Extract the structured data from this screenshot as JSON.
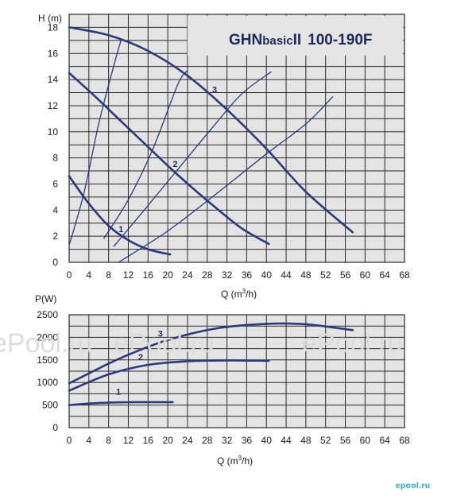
{
  "colors": {
    "curve": "#2b3a7a",
    "grid": "#2a2a2a",
    "plot_bg": "#e4e4e4",
    "watermark": "#dcdcdc",
    "logo": "#1aa7c9"
  },
  "chart_data": [
    {
      "type": "line",
      "title_parts": [
        "GHN",
        "basic",
        "II",
        "100-190F"
      ],
      "ylabel": "H (m)",
      "xlabel_q": "Q (m",
      "xlabel_sup": "3",
      "xlabel_tail": "/h)",
      "xlim": [
        0,
        68
      ],
      "ylim": [
        0,
        19
      ],
      "xticks": [
        0,
        4,
        8,
        12,
        16,
        20,
        24,
        28,
        32,
        36,
        40,
        44,
        48,
        52,
        56,
        60,
        64,
        68
      ],
      "yticks": [
        0,
        2,
        4,
        6,
        8,
        10,
        12,
        14,
        16,
        18
      ],
      "series": [
        {
          "name": "1",
          "x": [
            0,
            4,
            8,
            12,
            16,
            20.5
          ],
          "y": [
            6.6,
            4.5,
            2.8,
            1.7,
            1.0,
            0.6
          ]
        },
        {
          "name": "2",
          "x": [
            0,
            5,
            10,
            15,
            20,
            25,
            30,
            35,
            40.5
          ],
          "y": [
            14.5,
            12.8,
            11.0,
            9.2,
            7.4,
            5.7,
            4.1,
            2.6,
            1.4
          ]
        },
        {
          "name": "3",
          "x": [
            0,
            8,
            16,
            24,
            32,
            40,
            48,
            57.5
          ],
          "y": [
            18.0,
            17.4,
            16.2,
            14.3,
            11.7,
            8.7,
            5.4,
            2.3
          ]
        }
      ],
      "system_curves": [
        {
          "x": [
            0,
            3,
            6,
            9,
            10.5
          ],
          "y": [
            1.3,
            5.3,
            10.6,
            15.0,
            17.0
          ]
        },
        {
          "x": [
            7,
            12,
            17,
            22,
            24
          ],
          "y": [
            1.8,
            4.8,
            8.7,
            13.6,
            14.7
          ]
        },
        {
          "x": [
            9,
            15,
            22,
            29,
            35,
            41
          ],
          "y": [
            1.2,
            3.9,
            7.1,
            10.3,
            12.9,
            14.6
          ]
        },
        {
          "x": [
            10,
            20,
            30,
            40,
            48,
            53.5
          ],
          "y": [
            0,
            2.4,
            5.3,
            8.3,
            10.6,
            12.7
          ]
        }
      ],
      "curve_labels": [
        {
          "text": "1",
          "x": 10.5,
          "y": 2.3
        },
        {
          "text": "2",
          "x": 21.5,
          "y": 7.3
        },
        {
          "text": "3",
          "x": 29.5,
          "y": 13.0
        }
      ]
    },
    {
      "type": "line",
      "ylabel": "P(W)",
      "xlabel_q": "Q (m",
      "xlabel_sup": "3",
      "xlabel_tail": "/h)",
      "xlim": [
        0,
        68
      ],
      "ylim": [
        0,
        2500
      ],
      "xticks": [
        0,
        4,
        8,
        12,
        16,
        20,
        24,
        28,
        32,
        36,
        40,
        44,
        48,
        52,
        56,
        60,
        64,
        68
      ],
      "yticks": [
        0,
        500,
        1000,
        1500,
        2000,
        2500
      ],
      "series": [
        {
          "name": "1",
          "x": [
            0,
            5,
            10,
            15,
            21
          ],
          "y": [
            500,
            540,
            560,
            565,
            565
          ]
        },
        {
          "name": "2",
          "x": [
            0,
            8,
            16,
            24,
            32,
            40.5
          ],
          "y": [
            820,
            1180,
            1390,
            1470,
            1490,
            1480
          ]
        },
        {
          "name": "3",
          "x": [
            0,
            10,
            20,
            30,
            40,
            48,
            57.5
          ],
          "y": [
            980,
            1520,
            1940,
            2200,
            2300,
            2290,
            2160
          ]
        }
      ],
      "curve_labels": [
        {
          "text": "1",
          "x": 10,
          "y": 730
        },
        {
          "text": "2",
          "x": 14.5,
          "y": 1500
        },
        {
          "text": "3",
          "x": 18.5,
          "y": 2020
        }
      ]
    }
  ],
  "watermarks": [
    "ePool.ru",
    "ePool.ru",
    "ePool.ru"
  ],
  "logo_text": "epool.ru"
}
